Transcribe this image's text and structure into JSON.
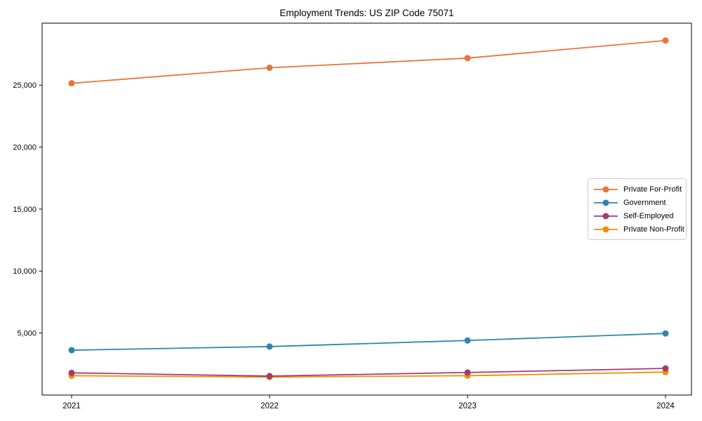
{
  "chart_data": {
    "type": "line",
    "title": "Employment Trends: US ZIP Code 75071",
    "x": [
      "2021",
      "2022",
      "2023",
      "2024"
    ],
    "series": [
      {
        "name": "Private For-Profit",
        "color": "#E8743B",
        "values": [
          25150,
          26400,
          27180,
          28600
        ]
      },
      {
        "name": "Government",
        "color": "#2E86AB",
        "values": [
          3620,
          3910,
          4400,
          4970
        ]
      },
      {
        "name": "Self-Employed",
        "color": "#A23B72",
        "values": [
          1790,
          1530,
          1820,
          2150
        ]
      },
      {
        "name": "Private Non-Profit",
        "color": "#F18F01",
        "values": [
          1560,
          1450,
          1560,
          1850
        ]
      }
    ],
    "ylim": [
      0,
      30000
    ],
    "yticks": [
      5000,
      10000,
      15000,
      20000,
      25000
    ],
    "grid": false,
    "legend_position": "center-right",
    "marker": "circle",
    "axis_color": "#000000"
  }
}
